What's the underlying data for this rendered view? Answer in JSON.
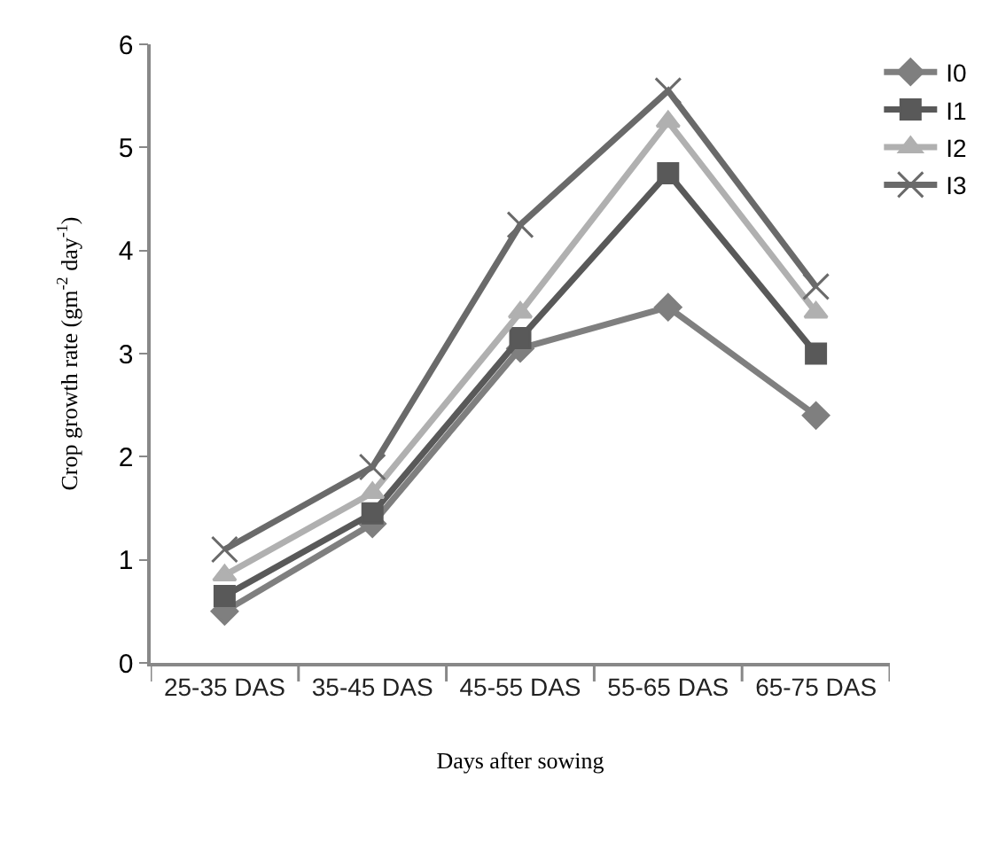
{
  "chart_data": {
    "type": "line",
    "xlabel": "Days after sowing",
    "ylabel": "Crop growth rate (gm$^{-2}$ day$^{-1}$)",
    "categories": [
      "25-35 DAS",
      "35-45 DAS",
      "45-55 DAS",
      "55-65 DAS",
      "65-75 DAS"
    ],
    "series": [
      {
        "name": "I0",
        "color": "#7f7f7f",
        "marker": "diamond",
        "values": [
          0.5,
          1.35,
          3.05,
          3.45,
          2.4
        ]
      },
      {
        "name": "I1",
        "color": "#595959",
        "marker": "square",
        "values": [
          0.65,
          1.45,
          3.15,
          4.75,
          3.0
        ]
      },
      {
        "name": "I2",
        "color": "#b0b0b0",
        "marker": "triangle",
        "values": [
          0.85,
          1.65,
          3.4,
          5.25,
          3.4
        ]
      },
      {
        "name": "I3",
        "color": "#6a6a6a",
        "marker": "cross",
        "values": [
          1.1,
          1.9,
          4.25,
          5.55,
          3.65
        ]
      }
    ],
    "ylim": [
      0,
      6
    ],
    "yticks": [
      0,
      1,
      2,
      3,
      4,
      5,
      6
    ],
    "grid": false,
    "legend": "top right",
    "line_style": "solid"
  }
}
